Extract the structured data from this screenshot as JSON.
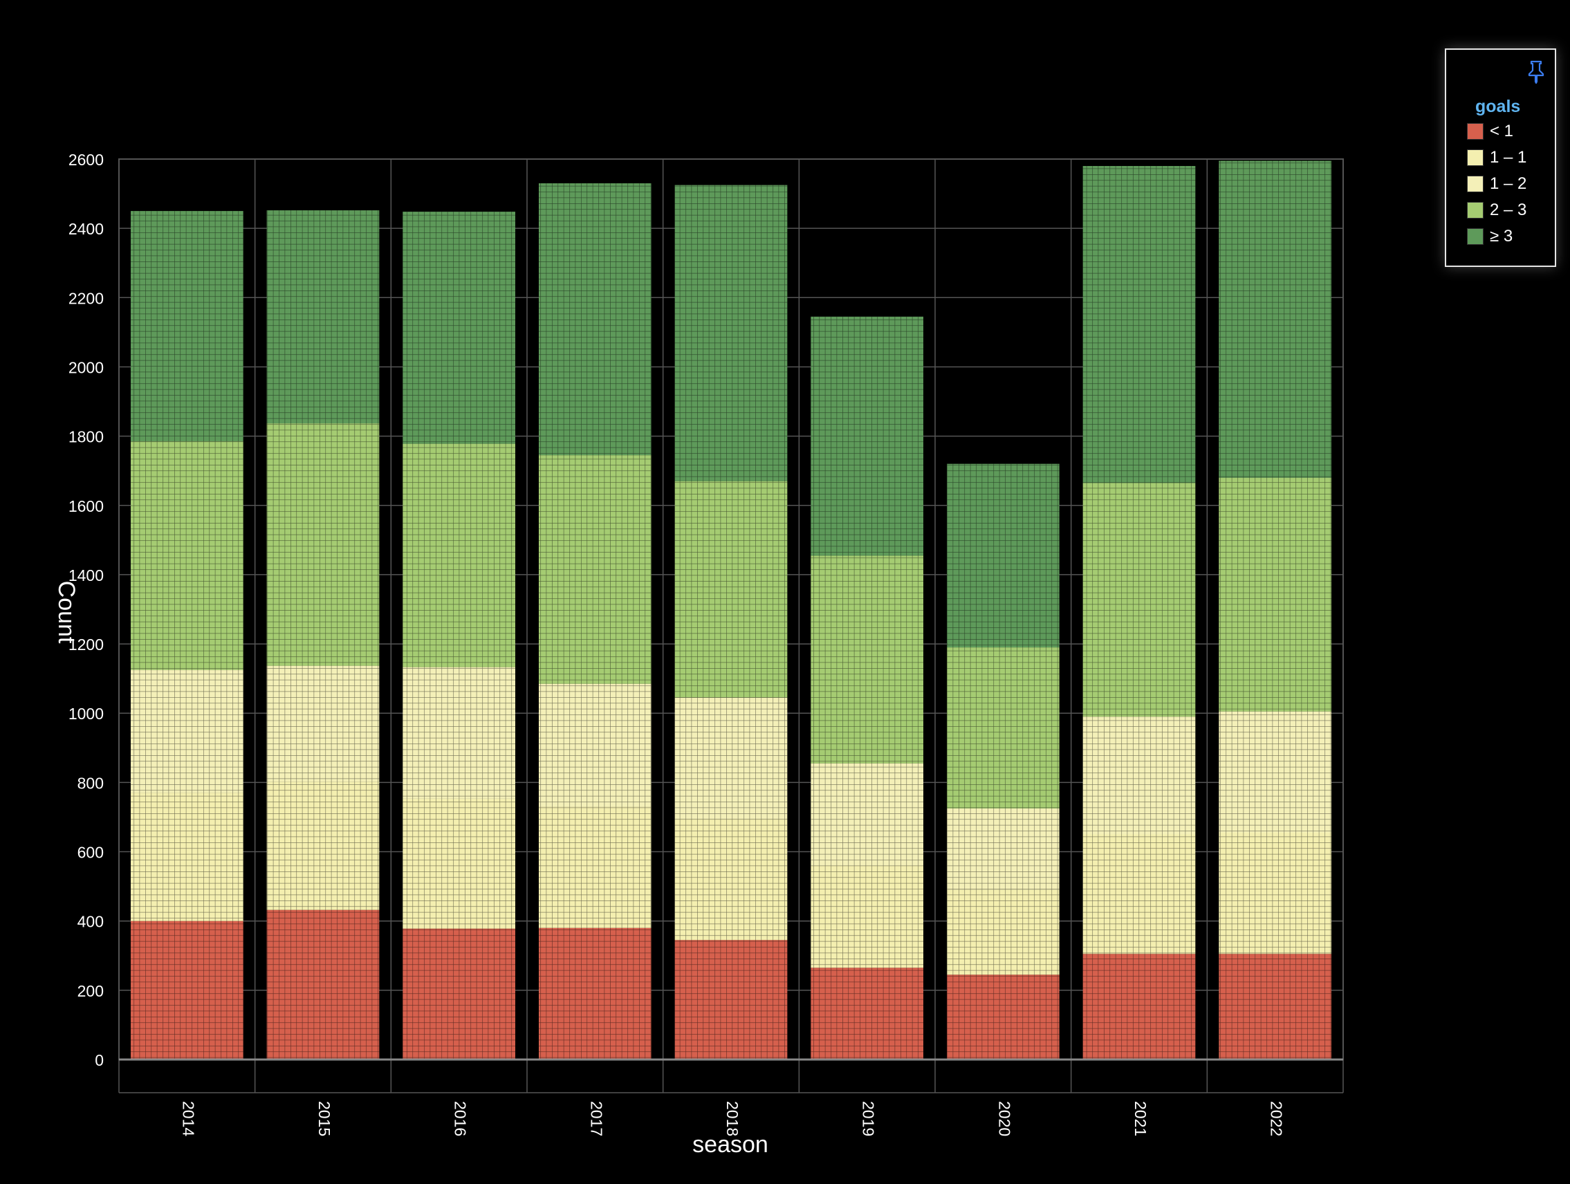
{
  "chart_data": {
    "type": "bar",
    "stacked": true,
    "xlabel": "season",
    "ylabel": "Count",
    "ylim": [
      0,
      2600
    ],
    "yticks": [
      0,
      200,
      400,
      600,
      800,
      1000,
      1200,
      1400,
      1600,
      1800,
      2000,
      2200,
      2400,
      2600
    ],
    "grid": true,
    "legend_position": "top-right",
    "legend_title": "goals",
    "categories": [
      "2014",
      "2015",
      "2016",
      "2017",
      "2018",
      "2019",
      "2020",
      "2021",
      "2022"
    ],
    "series": [
      {
        "name": "< 1",
        "color": "#d6604d",
        "values": [
          400,
          432,
          378,
          380,
          345,
          265,
          245,
          305,
          305
        ]
      },
      {
        "name": "1 – 1",
        "color": "#f4efb0",
        "values": [
          370,
          370,
          375,
          350,
          350,
          295,
          245,
          345,
          350
        ]
      },
      {
        "name": "1 – 2",
        "color": "#f4f0b8",
        "values": [
          355,
          335,
          380,
          355,
          350,
          295,
          235,
          340,
          350
        ]
      },
      {
        "name": "2 – 3",
        "color": "#a5cc72",
        "values": [
          660,
          700,
          645,
          660,
          625,
          600,
          465,
          675,
          675
        ]
      },
      {
        "name": "≥ 3",
        "color": "#5e9a5a",
        "values": [
          665,
          615,
          670,
          785,
          855,
          690,
          530,
          915,
          915
        ]
      }
    ]
  },
  "legend": {
    "title": "goals",
    "pin_icon": "pin-icon"
  },
  "colors": {
    "background": "#000000",
    "grid": "#555555",
    "legend_title": "#5fb4f0",
    "text": "#ffffff"
  }
}
